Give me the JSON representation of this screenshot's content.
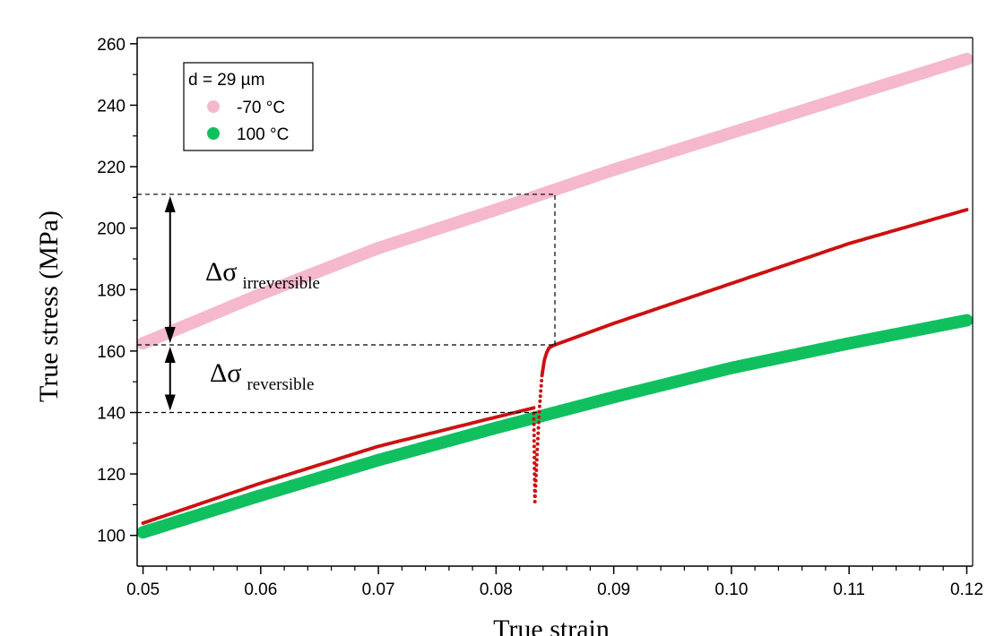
{
  "chart_data": {
    "type": "scatter",
    "ylabel": "True stress (MPa)",
    "xlabel": "True strain",
    "xlim": [
      0.0495,
      0.1205
    ],
    "ylim": [
      90,
      262
    ],
    "xticks": [
      0.05,
      0.06,
      0.07,
      0.08,
      0.09,
      0.1,
      0.11,
      0.12
    ],
    "xtick_labels": [
      "0.05",
      "0.06",
      "0.07",
      "0.08",
      "0.09",
      "0.10",
      "0.11",
      "0.12"
    ],
    "yticks": [
      100,
      120,
      140,
      160,
      180,
      200,
      220,
      240,
      260
    ],
    "ytick_labels": [
      "100",
      "120",
      "140",
      "160",
      "180",
      "200",
      "220",
      "240",
      "260"
    ],
    "grid": false,
    "legend": {
      "position": "top-left",
      "title": "d = 29 µm",
      "entries": [
        {
          "label": "-70 °C",
          "color": "#f5b8cc"
        },
        {
          "label": "100 °C",
          "color": "#10c05e"
        }
      ]
    },
    "series": [
      {
        "name": "-70 °C",
        "color": "#f5b8cc",
        "x": [
          0.05,
          0.06,
          0.07,
          0.08,
          0.09,
          0.1,
          0.11,
          0.12
        ],
        "y": [
          162.5,
          178.5,
          193.5,
          206,
          219,
          231,
          243,
          255
        ]
      },
      {
        "name": "100 °C",
        "color": "#10c05e",
        "x": [
          0.05,
          0.06,
          0.07,
          0.08,
          0.09,
          0.1,
          0.11,
          0.12
        ],
        "y": [
          101,
          113,
          124.5,
          135,
          145,
          154.5,
          162.5,
          170
        ]
      },
      {
        "color": "#cc1111",
        "x": [
          0.05,
          0.06,
          0.07,
          0.08,
          0.0832,
          0.0833,
          0.0835,
          0.0837,
          0.0839,
          0.0841,
          0.0843,
          0.0845,
          0.0847,
          0.085,
          0.09,
          0.1,
          0.11,
          0.12
        ],
        "y": [
          104,
          117,
          129,
          138.5,
          141.5,
          111,
          128,
          142,
          152,
          157,
          159.5,
          161,
          161.5,
          162,
          169,
          182,
          195,
          206
        ]
      }
    ],
    "annotations": [
      {
        "symbol": "Δσ",
        "subscript": "irreversible",
        "from_y": 162,
        "to_y": 211,
        "x": 0.0523
      },
      {
        "symbol": "Δσ",
        "subscript": "reversible",
        "from_y": 140,
        "to_y": 162,
        "x": 0.0523
      }
    ],
    "reference_lines": [
      {
        "y": 211,
        "x_from": 0.0495,
        "x_to": 0.085
      },
      {
        "y": 162,
        "x_from": 0.0495,
        "x_to": 0.085
      },
      {
        "y": 140,
        "x_from": 0.0495,
        "x_to": 0.0835
      },
      {
        "x": 0.085,
        "y_from": 162,
        "y_to": 211
      }
    ]
  }
}
